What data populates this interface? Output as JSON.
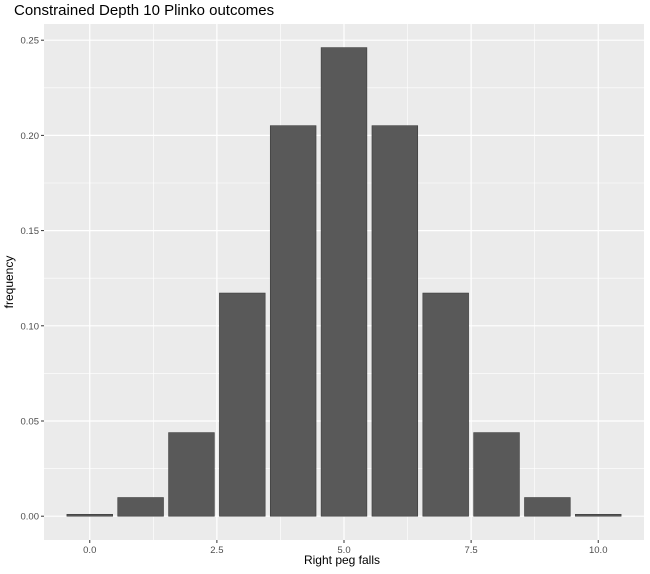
{
  "chart_data": {
    "type": "bar",
    "title": "Constrained Depth 10 Plinko outcomes",
    "xlabel": "Right peg falls",
    "ylabel": "frequency",
    "x": [
      0,
      1,
      2,
      3,
      4,
      5,
      6,
      7,
      8,
      9,
      10
    ],
    "values": [
      0.001,
      0.0098,
      0.0439,
      0.1172,
      0.2051,
      0.2461,
      0.2051,
      0.1172,
      0.0439,
      0.0098,
      0.001
    ],
    "xlim": [
      -0.9,
      10.9
    ],
    "ylim": [
      -0.0125,
      0.2585
    ],
    "x_ticks": [
      0,
      2.5,
      5,
      7.5,
      10
    ],
    "x_tick_labels": [
      "0.0",
      "2.5",
      "5.0",
      "7.5",
      "10.0"
    ],
    "y_ticks": [
      0,
      0.05,
      0.1,
      0.15,
      0.2,
      0.25
    ],
    "y_tick_labels": [
      "0.00",
      "0.05",
      "0.10",
      "0.15",
      "0.20",
      "0.25"
    ],
    "bar_color": "#595959",
    "panel_background": "#ebebeb",
    "grid": true,
    "grid_color": "#ffffff",
    "legend": "none"
  }
}
